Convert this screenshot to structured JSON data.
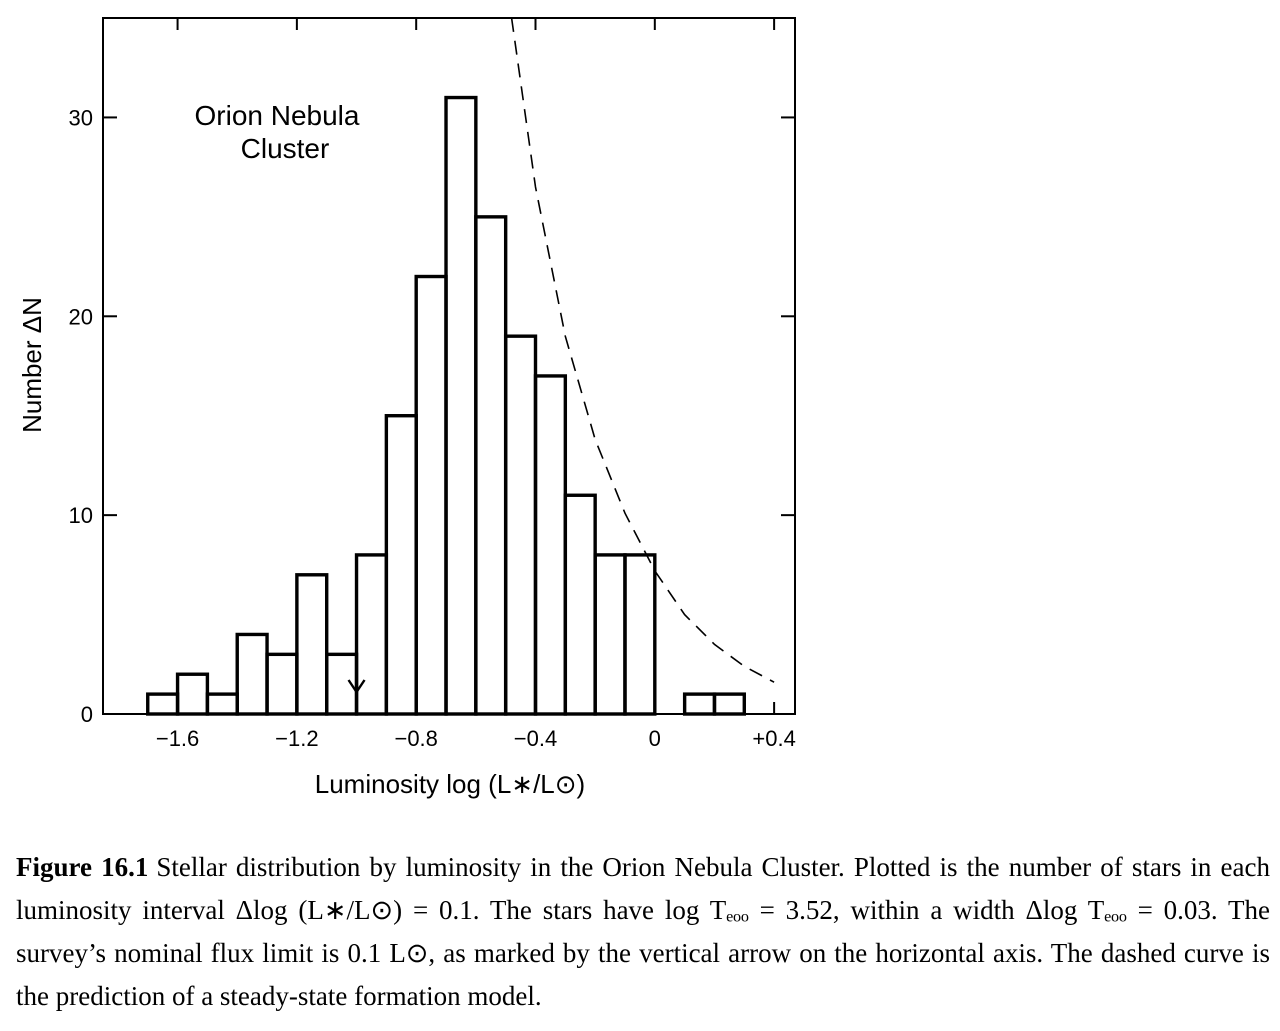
{
  "chart_data": {
    "type": "bar",
    "annotation": [
      "Orion  Nebula",
      "Cluster"
    ],
    "xlabel": "Luminosity   log (L∗/L⊙)",
    "ylabel": "Number   ΔN",
    "xlim": [
      -1.85,
      0.47
    ],
    "ylim": [
      0,
      35
    ],
    "xticks": [
      -1.6,
      -1.2,
      -0.8,
      -0.4,
      0,
      0.4
    ],
    "xtick_labels": [
      "−1.6",
      "−1.2",
      "−0.8",
      "−0.4",
      "0",
      "+0.4"
    ],
    "yticks": [
      0,
      10,
      20,
      30
    ],
    "ytick_labels": [
      "0",
      "10",
      "20",
      "30"
    ],
    "bin_width": 0.1,
    "bin_starts": [
      -1.7,
      -1.6,
      -1.5,
      -1.4,
      -1.3,
      -1.2,
      -1.1,
      -1.0,
      -0.9,
      -0.8,
      -0.7,
      -0.6,
      -0.5,
      -0.4,
      -0.3,
      -0.2,
      -0.1,
      0.0,
      0.1,
      0.2
    ],
    "values": [
      1,
      2,
      1,
      4,
      3,
      7,
      3,
      8,
      15,
      22,
      31,
      25,
      19,
      17,
      11,
      8,
      8,
      0,
      1,
      1
    ],
    "flux_limit_arrow_x": -1.0,
    "dashed_curve": {
      "x": [
        -0.48,
        -0.4,
        -0.3,
        -0.2,
        -0.1,
        0.0,
        0.1,
        0.2,
        0.3,
        0.4
      ],
      "y": [
        35,
        26.5,
        19.0,
        13.8,
        10.1,
        7.2,
        5.0,
        3.5,
        2.4,
        1.6
      ]
    },
    "grid": false
  },
  "caption": {
    "label": "Figure 16.1",
    "text": "Stellar distribution by luminosity in the Orion Nebula Cluster. Plotted is the number of stars in each luminosity interval Δlog (L∗/L⊙) = 0.1. The stars have log Tₑₒₒ = 3.52, within a width Δlog Tₑₒₒ = 0.03. The survey’s nominal flux limit is 0.1 L⊙, as marked by the vertical arrow on the horizontal axis. The dashed curve is the prediction of a steady-state formation model."
  }
}
